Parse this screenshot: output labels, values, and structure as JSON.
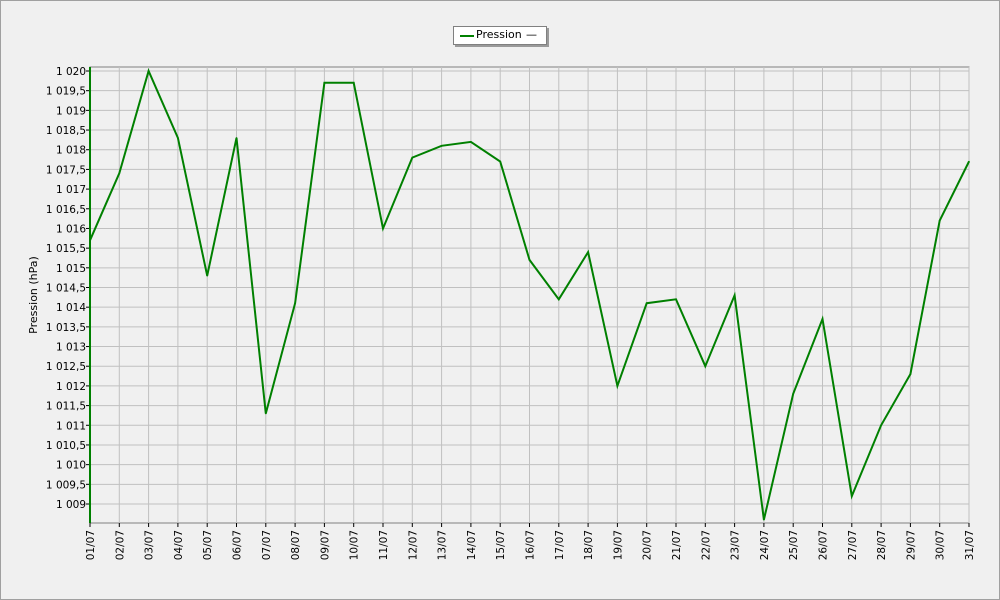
{
  "chart_data": {
    "type": "line",
    "legend": {
      "label": "Pression",
      "marker": "—",
      "position": "top-center"
    },
    "ylabel": "Pression (hPa)",
    "xlabel": "",
    "ylim": [
      1008.6,
      1020.05
    ],
    "grid": true,
    "y_ticks": [
      {
        "value": 1009,
        "label": "1 009"
      },
      {
        "value": 1009.5,
        "label": "1 009,5"
      },
      {
        "value": 1010,
        "label": "1 010"
      },
      {
        "value": 1010.5,
        "label": "1 010,5"
      },
      {
        "value": 1011,
        "label": "1 011"
      },
      {
        "value": 1011.5,
        "label": "1 011,5"
      },
      {
        "value": 1012,
        "label": "1 012"
      },
      {
        "value": 1012.5,
        "label": "1 012,5"
      },
      {
        "value": 1013,
        "label": "1 013"
      },
      {
        "value": 1013.5,
        "label": "1 013,5"
      },
      {
        "value": 1014,
        "label": "1 014"
      },
      {
        "value": 1014.5,
        "label": "1 014,5"
      },
      {
        "value": 1015,
        "label": "1 015"
      },
      {
        "value": 1015.5,
        "label": "1 015,5"
      },
      {
        "value": 1016,
        "label": "1 016"
      },
      {
        "value": 1016.5,
        "label": "1 016,5"
      },
      {
        "value": 1017,
        "label": "1 017"
      },
      {
        "value": 1017.5,
        "label": "1 017,5"
      },
      {
        "value": 1018,
        "label": "1 018"
      },
      {
        "value": 1018.5,
        "label": "1 018,5"
      },
      {
        "value": 1019,
        "label": "1 019"
      },
      {
        "value": 1019.5,
        "label": "1 019,5"
      },
      {
        "value": 1020,
        "label": "1 020"
      }
    ],
    "categories": [
      "01/07",
      "02/07",
      "03/07",
      "04/07",
      "05/07",
      "06/07",
      "07/07",
      "08/07",
      "09/07",
      "10/07",
      "11/07",
      "12/07",
      "13/07",
      "14/07",
      "15/07",
      "16/07",
      "17/07",
      "18/07",
      "19/07",
      "20/07",
      "21/07",
      "22/07",
      "23/07",
      "24/07",
      "25/07",
      "26/07",
      "27/07",
      "28/07",
      "29/07",
      "30/07",
      "31/07"
    ],
    "series": [
      {
        "name": "Pression",
        "color": "#008000",
        "values": [
          1015.7,
          1017.4,
          1020.0,
          1018.3,
          1014.8,
          1018.3,
          1011.3,
          1014.1,
          1019.7,
          1019.7,
          1016.0,
          1017.8,
          1018.1,
          1018.2,
          1017.7,
          1015.2,
          1014.2,
          1015.4,
          1012.0,
          1014.1,
          1014.2,
          1012.5,
          1014.3,
          1008.6,
          1011.8,
          1013.7,
          1009.2,
          1011.0,
          1012.3,
          1016.2,
          1017.7
        ]
      }
    ]
  }
}
